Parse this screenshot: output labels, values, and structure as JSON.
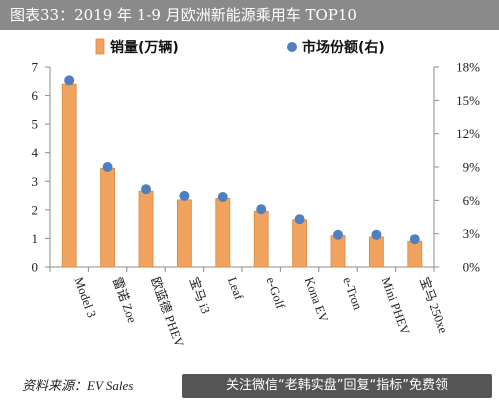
{
  "header": {
    "title": "图表33：2019 年 1-9 月欧洲新能源乘用车 TOP10"
  },
  "footer": {
    "source": "资料来源：EV Sales",
    "watermark": "关注微信“老韩实盘”回复“指标”免费领"
  },
  "colors": {
    "bar": "#f0a35e",
    "bar_edge": "#d98a3e",
    "dot": "#4f7fbf",
    "axis": "#8c8c8c"
  },
  "chart_data": {
    "type": "bar",
    "categories": [
      "Model 3",
      "雷诺 Zoe",
      "欧蓝德 PHEV",
      "宝马 i3",
      "Leaf",
      "e-Golf",
      "Kona EV",
      "e-Tron",
      "Mini PHEV",
      "宝马 250xe"
    ],
    "series": [
      {
        "name": "销量(万辆)",
        "type": "bar",
        "axis": "left",
        "values": [
          6.4,
          3.45,
          2.65,
          2.35,
          2.4,
          1.95,
          1.65,
          1.1,
          1.05,
          0.9
        ]
      },
      {
        "name": "市场份额(右)",
        "type": "scatter",
        "axis": "right",
        "values": [
          16.8,
          9.0,
          7.0,
          6.4,
          6.3,
          5.2,
          4.3,
          2.9,
          2.9,
          2.5
        ]
      }
    ],
    "y_left": {
      "ylim": [
        0,
        7
      ],
      "ticks": [
        "0",
        "1",
        "2",
        "3",
        "4",
        "5",
        "6",
        "7"
      ]
    },
    "y_right": {
      "ylim": [
        0,
        18
      ],
      "ticks": [
        "0%",
        "3%",
        "6%",
        "9%",
        "12%",
        "15%",
        "18%"
      ]
    },
    "legend": "top",
    "grid": false
  }
}
